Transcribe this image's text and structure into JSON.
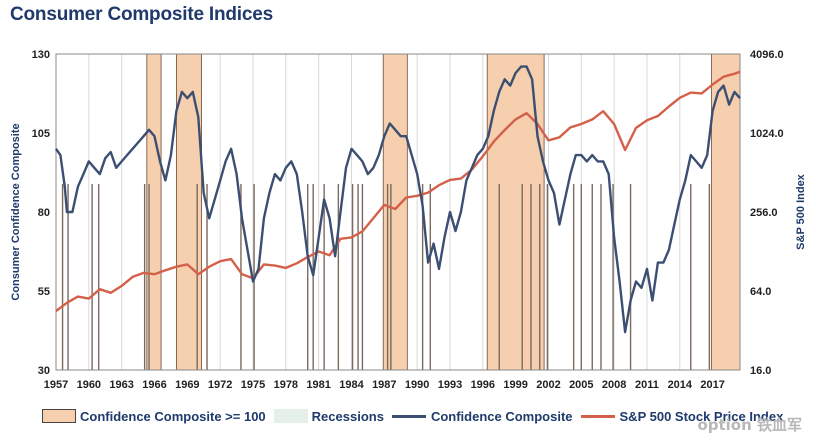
{
  "page": {
    "title": "Consumer Composite Indices",
    "watermark": "option 铁血军"
  },
  "chart_data": {
    "type": "line",
    "title": "Consumer Composite Indices",
    "ylabel": "Consumer Confidence Composite",
    "y2label": "S&P 500 Index",
    "ylim": [
      30,
      130
    ],
    "y2lim": [
      16,
      4096
    ],
    "y2scale": "log2",
    "xlim": [
      1957,
      2019.5
    ],
    "x_ticks": [
      "1957",
      "1960",
      "1963",
      "1966",
      "1969",
      "1972",
      "1975",
      "1978",
      "1981",
      "1984",
      "1987",
      "1990",
      "1993",
      "1996",
      "1999",
      "2002",
      "2005",
      "2008",
      "2011",
      "2014",
      "2017"
    ],
    "y_ticks": [
      "30",
      "55",
      "80",
      "105",
      "130"
    ],
    "y2_ticks": [
      "16.0",
      "64.0",
      "256.0",
      "1024.0",
      "4096.0"
    ],
    "grid": "vertical",
    "legend_position": "bottom",
    "legend": [
      {
        "name": "Confidence Composite >= 100",
        "color": "#f5cfae",
        "kind": "area"
      },
      {
        "name": "Recessions",
        "color": "#e6f0ea",
        "kind": "area"
      },
      {
        "name": "Confidence Composite",
        "color": "#3c4f72",
        "kind": "line"
      },
      {
        "name": "S&P 500 Stock Price Index",
        "color": "#d4604a",
        "kind": "line"
      }
    ],
    "confidence_ge_100_periods": [
      [
        1965.3,
        1966.6
      ],
      [
        1968.0,
        1970.3
      ],
      [
        1986.9,
        1989.1
      ],
      [
        1996.4,
        2001.6
      ],
      [
        2016.9,
        2019.5
      ]
    ],
    "recession_markers": [
      1957.6,
      1958.1,
      1960.3,
      1960.9,
      1965.1,
      1965.5,
      1969.9,
      1970.8,
      1973.9,
      1975.1,
      1980.0,
      1980.5,
      1981.5,
      1982.8,
      1984.1,
      1984.6,
      1985.0,
      1987.3,
      1987.6,
      1990.5,
      1991.2,
      1997.5,
      1999.6,
      2000.4,
      2001.2,
      2001.9,
      2004.3,
      2005.0,
      2006.0,
      2006.8,
      2007.9,
      2009.5,
      2015.0,
      2016.7
    ],
    "series": [
      {
        "name": "Confidence Composite",
        "axis": "left",
        "points": [
          [
            1957.0,
            100
          ],
          [
            1957.4,
            98
          ],
          [
            1957.8,
            88
          ],
          [
            1958.0,
            80
          ],
          [
            1958.5,
            80
          ],
          [
            1959.0,
            88
          ],
          [
            1959.5,
            92
          ],
          [
            1960.0,
            96
          ],
          [
            1960.5,
            94
          ],
          [
            1961.0,
            92
          ],
          [
            1961.5,
            97
          ],
          [
            1962.0,
            99
          ],
          [
            1962.5,
            94
          ],
          [
            1963.0,
            96
          ],
          [
            1963.5,
            98
          ],
          [
            1964.0,
            100
          ],
          [
            1964.5,
            102
          ],
          [
            1965.0,
            104
          ],
          [
            1965.5,
            106
          ],
          [
            1966.0,
            104
          ],
          [
            1966.5,
            96
          ],
          [
            1967.0,
            90
          ],
          [
            1967.5,
            98
          ],
          [
            1968.0,
            112
          ],
          [
            1968.5,
            118
          ],
          [
            1969.0,
            116
          ],
          [
            1969.5,
            118
          ],
          [
            1970.0,
            110
          ],
          [
            1970.5,
            86
          ],
          [
            1971.0,
            78
          ],
          [
            1971.5,
            84
          ],
          [
            1972.0,
            90
          ],
          [
            1972.5,
            96
          ],
          [
            1973.0,
            100
          ],
          [
            1973.5,
            92
          ],
          [
            1974.0,
            78
          ],
          [
            1974.5,
            68
          ],
          [
            1975.0,
            58
          ],
          [
            1975.5,
            62
          ],
          [
            1976.0,
            78
          ],
          [
            1976.5,
            86
          ],
          [
            1977.0,
            92
          ],
          [
            1977.5,
            90
          ],
          [
            1978.0,
            94
          ],
          [
            1978.5,
            96
          ],
          [
            1979.0,
            92
          ],
          [
            1979.5,
            80
          ],
          [
            1980.0,
            66
          ],
          [
            1980.5,
            60
          ],
          [
            1981.0,
            72
          ],
          [
            1981.5,
            84
          ],
          [
            1982.0,
            78
          ],
          [
            1982.5,
            66
          ],
          [
            1983.0,
            80
          ],
          [
            1983.5,
            94
          ],
          [
            1984.0,
            100
          ],
          [
            1984.5,
            98
          ],
          [
            1985.0,
            96
          ],
          [
            1985.5,
            92
          ],
          [
            1986.0,
            94
          ],
          [
            1986.5,
            98
          ],
          [
            1987.0,
            104
          ],
          [
            1987.5,
            108
          ],
          [
            1988.0,
            106
          ],
          [
            1988.5,
            104
          ],
          [
            1989.0,
            104
          ],
          [
            1989.5,
            98
          ],
          [
            1990.0,
            92
          ],
          [
            1990.5,
            82
          ],
          [
            1991.0,
            64
          ],
          [
            1991.5,
            70
          ],
          [
            1992.0,
            62
          ],
          [
            1992.5,
            72
          ],
          [
            1993.0,
            80
          ],
          [
            1993.5,
            74
          ],
          [
            1994.0,
            80
          ],
          [
            1994.5,
            90
          ],
          [
            1995.0,
            94
          ],
          [
            1995.5,
            98
          ],
          [
            1996.0,
            100
          ],
          [
            1996.5,
            104
          ],
          [
            1997.0,
            112
          ],
          [
            1997.5,
            118
          ],
          [
            1998.0,
            122
          ],
          [
            1998.5,
            120
          ],
          [
            1999.0,
            124
          ],
          [
            1999.5,
            126
          ],
          [
            2000.0,
            126
          ],
          [
            2000.5,
            122
          ],
          [
            2001.0,
            104
          ],
          [
            2001.5,
            96
          ],
          [
            2002.0,
            90
          ],
          [
            2002.5,
            86
          ],
          [
            2003.0,
            76
          ],
          [
            2003.5,
            84
          ],
          [
            2004.0,
            92
          ],
          [
            2004.5,
            98
          ],
          [
            2005.0,
            98
          ],
          [
            2005.5,
            96
          ],
          [
            2006.0,
            98
          ],
          [
            2006.5,
            96
          ],
          [
            2007.0,
            96
          ],
          [
            2007.5,
            92
          ],
          [
            2008.0,
            72
          ],
          [
            2008.5,
            58
          ],
          [
            2009.0,
            42
          ],
          [
            2009.5,
            52
          ],
          [
            2010.0,
            58
          ],
          [
            2010.5,
            56
          ],
          [
            2011.0,
            62
          ],
          [
            2011.5,
            52
          ],
          [
            2012.0,
            64
          ],
          [
            2012.5,
            64
          ],
          [
            2013.0,
            68
          ],
          [
            2013.5,
            76
          ],
          [
            2014.0,
            84
          ],
          [
            2014.5,
            90
          ],
          [
            2015.0,
            98
          ],
          [
            2015.5,
            96
          ],
          [
            2016.0,
            94
          ],
          [
            2016.5,
            98
          ],
          [
            2017.0,
            112
          ],
          [
            2017.5,
            118
          ],
          [
            2018.0,
            120
          ],
          [
            2018.5,
            114
          ],
          [
            2019.0,
            118
          ],
          [
            2019.5,
            116
          ]
        ]
      },
      {
        "name": "S&P 500 Stock Price Index",
        "axis": "right",
        "points": [
          [
            1957.0,
            45
          ],
          [
            1958.0,
            52
          ],
          [
            1959.0,
            58
          ],
          [
            1960.0,
            56
          ],
          [
            1961.0,
            66
          ],
          [
            1962.0,
            62
          ],
          [
            1963.0,
            70
          ],
          [
            1964.0,
            82
          ],
          [
            1965.0,
            88
          ],
          [
            1966.0,
            86
          ],
          [
            1967.0,
            92
          ],
          [
            1968.0,
            98
          ],
          [
            1969.0,
            102
          ],
          [
            1970.0,
            86
          ],
          [
            1971.0,
            98
          ],
          [
            1972.0,
            108
          ],
          [
            1973.0,
            112
          ],
          [
            1974.0,
            86
          ],
          [
            1975.0,
            80
          ],
          [
            1976.0,
            102
          ],
          [
            1977.0,
            100
          ],
          [
            1978.0,
            96
          ],
          [
            1979.0,
            104
          ],
          [
            1980.0,
            116
          ],
          [
            1981.0,
            128
          ],
          [
            1982.0,
            120
          ],
          [
            1983.0,
            160
          ],
          [
            1984.0,
            164
          ],
          [
            1985.0,
            182
          ],
          [
            1986.0,
            230
          ],
          [
            1987.0,
            290
          ],
          [
            1988.0,
            270
          ],
          [
            1989.0,
            330
          ],
          [
            1990.0,
            340
          ],
          [
            1991.0,
            360
          ],
          [
            1992.0,
            410
          ],
          [
            1993.0,
            450
          ],
          [
            1994.0,
            460
          ],
          [
            1995.0,
            540
          ],
          [
            1996.0,
            680
          ],
          [
            1997.0,
            880
          ],
          [
            1998.0,
            1080
          ],
          [
            1999.0,
            1300
          ],
          [
            2000.0,
            1450
          ],
          [
            2001.0,
            1200
          ],
          [
            2002.0,
            900
          ],
          [
            2003.0,
            950
          ],
          [
            2004.0,
            1130
          ],
          [
            2005.0,
            1200
          ],
          [
            2006.0,
            1300
          ],
          [
            2007.0,
            1500
          ],
          [
            2008.0,
            1200
          ],
          [
            2009.0,
            760
          ],
          [
            2010.0,
            1120
          ],
          [
            2011.0,
            1280
          ],
          [
            2012.0,
            1380
          ],
          [
            2013.0,
            1630
          ],
          [
            2014.0,
            1900
          ],
          [
            2015.0,
            2080
          ],
          [
            2016.0,
            2050
          ],
          [
            2017.0,
            2400
          ],
          [
            2018.0,
            2750
          ],
          [
            2019.0,
            2900
          ],
          [
            2019.5,
            3000
          ]
        ]
      }
    ]
  }
}
